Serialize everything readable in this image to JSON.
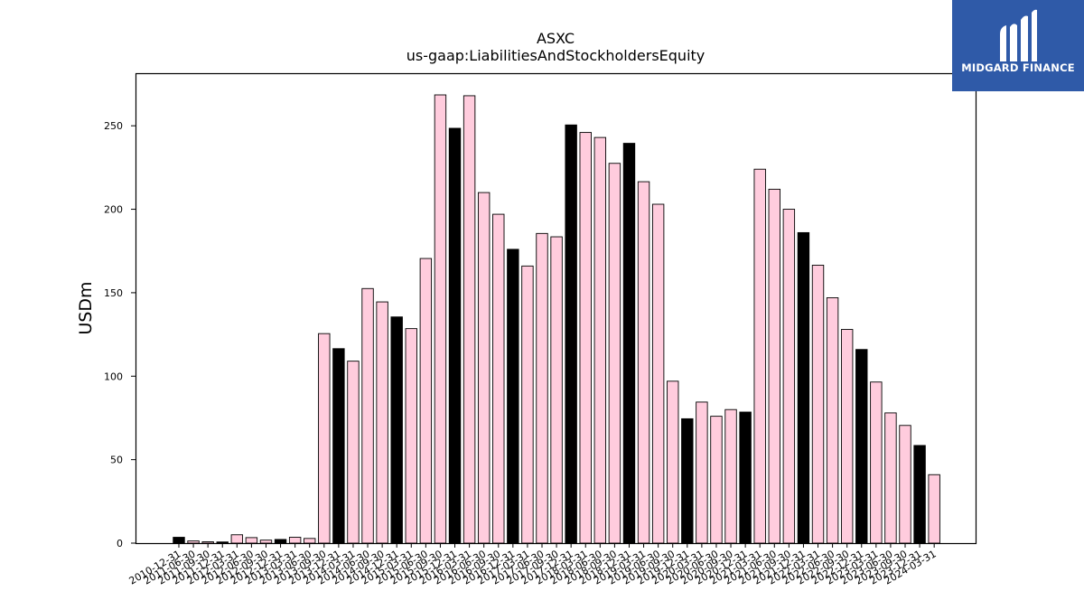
{
  "chart_data": {
    "type": "bar",
    "title": "ASXC",
    "subtitle": "us-gaap:LiabilitiesAndStockholdersEquity",
    "ylabel": "USDm",
    "xlabel": "",
    "ylim": [
      0,
      281.5
    ],
    "yticks": [
      0,
      50,
      100,
      150,
      200,
      250
    ],
    "grid": false,
    "legend": "none",
    "colors": {
      "pink": "#ffccdd",
      "black": "#000000",
      "edge": "#000000"
    },
    "bars": [
      {
        "date": "2010-12-31",
        "value": 3.5,
        "color": "black"
      },
      {
        "date": "2011-06-30",
        "value": 1.3,
        "color": "pink"
      },
      {
        "date": "2011-09-30",
        "value": 0.8,
        "color": "pink"
      },
      {
        "date": "2011-12-31",
        "value": 0.7,
        "color": "black"
      },
      {
        "date": "2012-03-31",
        "value": 5.0,
        "color": "pink"
      },
      {
        "date": "2012-06-30",
        "value": 3.3,
        "color": "pink"
      },
      {
        "date": "2012-09-30",
        "value": 1.8,
        "color": "pink"
      },
      {
        "date": "2012-12-31",
        "value": 2.2,
        "color": "black"
      },
      {
        "date": "2013-03-31",
        "value": 3.5,
        "color": "pink"
      },
      {
        "date": "2013-06-30",
        "value": 2.8,
        "color": "pink"
      },
      {
        "date": "2013-09-30",
        "value": 125.5,
        "color": "pink"
      },
      {
        "date": "2013-12-31",
        "value": 116.5,
        "color": "black"
      },
      {
        "date": "2014-03-31",
        "value": 109.0,
        "color": "pink"
      },
      {
        "date": "2014-06-30",
        "value": 152.5,
        "color": "pink"
      },
      {
        "date": "2014-09-30",
        "value": 144.5,
        "color": "pink"
      },
      {
        "date": "2014-12-31",
        "value": 135.5,
        "color": "black"
      },
      {
        "date": "2015-03-31",
        "value": 128.5,
        "color": "pink"
      },
      {
        "date": "2015-06-30",
        "value": 170.5,
        "color": "pink"
      },
      {
        "date": "2015-09-30",
        "value": 268.5,
        "color": "pink"
      },
      {
        "date": "2015-12-31",
        "value": 248.5,
        "color": "black"
      },
      {
        "date": "2016-03-31",
        "value": 268.0,
        "color": "pink"
      },
      {
        "date": "2016-06-30",
        "value": 210.0,
        "color": "pink"
      },
      {
        "date": "2016-09-30",
        "value": 197.0,
        "color": "pink"
      },
      {
        "date": "2016-12-31",
        "value": 176.0,
        "color": "black"
      },
      {
        "date": "2017-03-31",
        "value": 166.0,
        "color": "pink"
      },
      {
        "date": "2017-06-30",
        "value": 185.5,
        "color": "pink"
      },
      {
        "date": "2017-09-30",
        "value": 183.5,
        "color": "pink"
      },
      {
        "date": "2017-12-31",
        "value": 250.5,
        "color": "black"
      },
      {
        "date": "2018-03-31",
        "value": 246.0,
        "color": "pink"
      },
      {
        "date": "2018-06-30",
        "value": 243.0,
        "color": "pink"
      },
      {
        "date": "2018-09-30",
        "value": 227.5,
        "color": "pink"
      },
      {
        "date": "2018-12-31",
        "value": 239.5,
        "color": "black"
      },
      {
        "date": "2019-03-31",
        "value": 216.5,
        "color": "pink"
      },
      {
        "date": "2019-06-30",
        "value": 203.0,
        "color": "pink"
      },
      {
        "date": "2019-09-30",
        "value": 97.0,
        "color": "pink"
      },
      {
        "date": "2019-12-31",
        "value": 74.5,
        "color": "black"
      },
      {
        "date": "2020-03-31",
        "value": 84.5,
        "color": "pink"
      },
      {
        "date": "2020-06-30",
        "value": 76.0,
        "color": "pink"
      },
      {
        "date": "2020-09-30",
        "value": 80.0,
        "color": "pink"
      },
      {
        "date": "2020-12-31",
        "value": 78.5,
        "color": "black"
      },
      {
        "date": "2021-03-31",
        "value": 224.0,
        "color": "pink"
      },
      {
        "date": "2021-06-30",
        "value": 212.0,
        "color": "pink"
      },
      {
        "date": "2021-09-30",
        "value": 200.0,
        "color": "pink"
      },
      {
        "date": "2021-12-31",
        "value": 186.0,
        "color": "black"
      },
      {
        "date": "2022-03-31",
        "value": 166.5,
        "color": "pink"
      },
      {
        "date": "2022-06-30",
        "value": 147.0,
        "color": "pink"
      },
      {
        "date": "2022-09-30",
        "value": 128.0,
        "color": "pink"
      },
      {
        "date": "2022-12-31",
        "value": 116.0,
        "color": "black"
      },
      {
        "date": "2023-03-31",
        "value": 96.5,
        "color": "pink"
      },
      {
        "date": "2023-06-30",
        "value": 78.0,
        "color": "pink"
      },
      {
        "date": "2023-09-30",
        "value": 70.5,
        "color": "pink"
      },
      {
        "date": "2023-12-31",
        "value": 58.5,
        "color": "black"
      },
      {
        "date": "2024-03-31",
        "value": 41.0,
        "color": "pink"
      }
    ]
  },
  "logo": {
    "text": "MIDGARD FINANCE",
    "background": "#2f5aa8"
  }
}
